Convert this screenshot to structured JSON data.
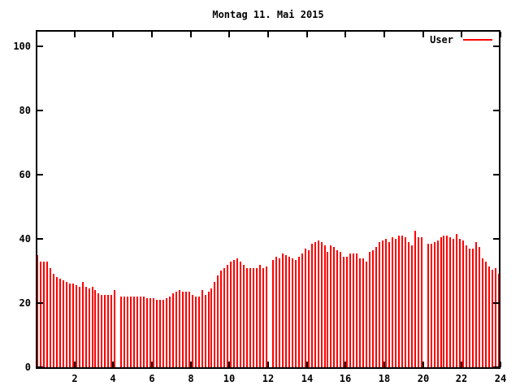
{
  "window": {
    "background": "#ffffff"
  },
  "title": "Montag 11. Mai 2015",
  "legend": {
    "label": "User",
    "color": "#ff0000",
    "position": "top-right-inside"
  },
  "chart_data": {
    "type": "bar",
    "title": "Montag 11. Mai 2015",
    "xlabel": "",
    "ylabel": "",
    "x_axis_meaning": "time of day in hours, one bar per 10 minutes",
    "xlim": [
      0,
      24
    ],
    "ylim": [
      0,
      105
    ],
    "grid": false,
    "bar_color": "#ff0000",
    "axis_color": "#000000",
    "xtick_values": [
      2,
      4,
      6,
      8,
      10,
      12,
      14,
      16,
      18,
      20,
      22,
      24
    ],
    "xtick_labels": [
      "2",
      "4",
      "6",
      "8",
      "10",
      "12",
      "14",
      "16",
      "18",
      "20",
      "22",
      "24"
    ],
    "ytick_values": [
      0,
      20,
      40,
      60,
      80,
      100
    ],
    "ytick_labels": [
      "0",
      "20",
      "40",
      "60",
      "80",
      "100"
    ],
    "legend_position": "top-right-inside",
    "gaps_at_hours": [
      4.25,
      12.0,
      20.0
    ],
    "series": [
      {
        "name": "User",
        "color": "#ff0000",
        "x_start_hour": 0.083,
        "x_step_hours": 0.167,
        "values": [
          35,
          33,
          33,
          33,
          31,
          29,
          28,
          27.5,
          27,
          26.5,
          26,
          26,
          25.5,
          25,
          26.5,
          25,
          24.5,
          25,
          24,
          23,
          22.5,
          22.5,
          22.5,
          22.5,
          24,
          0,
          22,
          22,
          22,
          22,
          22,
          22,
          22,
          22,
          21.5,
          21.5,
          21.5,
          21,
          21,
          21,
          21.5,
          22,
          23,
          23.5,
          24,
          23.5,
          23.5,
          23.5,
          22.5,
          22,
          22,
          24,
          22.5,
          23.5,
          24.5,
          26.5,
          28.5,
          30,
          31,
          32,
          33,
          33.5,
          34,
          33,
          32,
          31,
          31,
          31,
          31,
          32,
          31,
          31.5,
          0,
          33.5,
          34.5,
          34,
          35.5,
          35,
          34.5,
          34,
          33.5,
          34.5,
          35.5,
          37,
          36.5,
          38.5,
          39,
          39.5,
          39,
          38,
          36,
          38,
          37.5,
          36.5,
          36,
          34.5,
          34.5,
          35.5,
          35.5,
          35.5,
          34,
          34,
          33,
          36,
          36.5,
          37.5,
          39,
          39.5,
          40,
          39,
          40.5,
          40,
          41,
          41,
          40.5,
          39,
          38,
          42.5,
          40.5,
          40.5,
          0,
          38.5,
          38.5,
          39,
          39.5,
          40.5,
          41,
          41,
          40.5,
          40,
          41.5,
          40,
          39.5,
          38,
          37,
          37,
          39,
          37.5,
          34,
          33,
          31.5,
          30.5,
          31,
          29
        ]
      }
    ]
  }
}
